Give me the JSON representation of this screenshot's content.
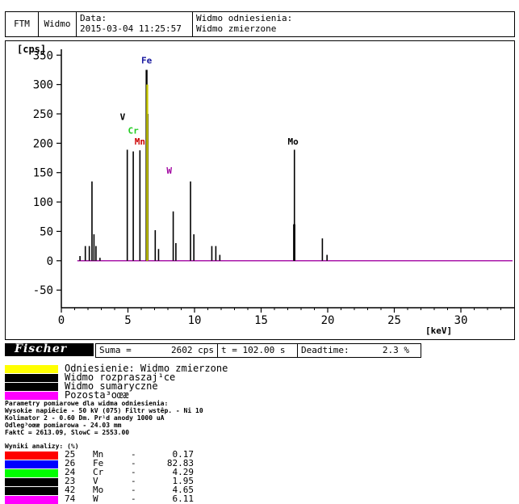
{
  "header": {
    "cell1": "FTM",
    "cell2": "Widmo",
    "date_label": "Data:",
    "date_value": "2015-03-04 11:25:57",
    "ref_label": "Widmo odniesienia:",
    "ref_value": "Widmo zmierzone"
  },
  "chart_data": {
    "type": "line",
    "ylabel": "[cps]",
    "xlabel": "[keV]",
    "xlim": [
      0,
      34
    ],
    "ylim": [
      -80,
      360
    ],
    "xticks": [
      0,
      5,
      10,
      15,
      20,
      25,
      30
    ],
    "yticks": [
      -50,
      0,
      50,
      100,
      150,
      200,
      250,
      300,
      350
    ],
    "peaks": [
      {
        "x": 1.4,
        "y": 8
      },
      {
        "x": 1.8,
        "y": 25
      },
      {
        "x": 2.1,
        "y": 25
      },
      {
        "x": 2.3,
        "y": 135
      },
      {
        "x": 2.45,
        "y": 45
      },
      {
        "x": 2.6,
        "y": 25
      },
      {
        "x": 2.9,
        "y": 5
      },
      {
        "x": 4.95,
        "y": 189
      },
      {
        "x": 5.4,
        "y": 186
      },
      {
        "x": 5.9,
        "y": 188
      },
      {
        "x": 6.4,
        "y": 325
      },
      {
        "x": 6.5,
        "y": 250
      },
      {
        "x": 7.05,
        "y": 52
      },
      {
        "x": 7.3,
        "y": 20
      },
      {
        "x": 8.4,
        "y": 84
      },
      {
        "x": 8.6,
        "y": 30
      },
      {
        "x": 9.7,
        "y": 135
      },
      {
        "x": 9.95,
        "y": 45
      },
      {
        "x": 11.3,
        "y": 25
      },
      {
        "x": 11.6,
        "y": 25
      },
      {
        "x": 11.9,
        "y": 10
      },
      {
        "x": 17.45,
        "y": 62
      },
      {
        "x": 17.5,
        "y": 189
      },
      {
        "x": 19.6,
        "y": 38
      },
      {
        "x": 19.95,
        "y": 10
      }
    ],
    "element_labels": [
      {
        "text": "Fe",
        "x": 6.4,
        "y": 336,
        "color": "#1a1aa0"
      },
      {
        "text": "V",
        "x": 4.6,
        "y": 240,
        "color": "#000000"
      },
      {
        "text": "Cr",
        "x": 5.4,
        "y": 216,
        "color": "#22cc22"
      },
      {
        "text": "Mn",
        "x": 5.9,
        "y": 198,
        "color": "#cc0000"
      },
      {
        "text": "W",
        "x": 8.1,
        "y": 148,
        "color": "#a000a0"
      },
      {
        "text": "Mo",
        "x": 17.4,
        "y": 198,
        "color": "#000000"
      }
    ]
  },
  "status": {
    "logo": "Fischer",
    "suma_label": "Suma =",
    "suma_value": "2602 cps",
    "time": "t = 102.00 s",
    "deadtime_label": "Deadtime:",
    "deadtime_value": "2.3 %"
  },
  "legend": [
    {
      "label": "Odniesienie: Widmo zmierzone",
      "color": "#ffff00"
    },
    {
      "label": "Widmo rozpraszaj¹ce",
      "color": "#000000"
    },
    {
      "label": "Widmo sumaryczne",
      "color": "#000000"
    },
    {
      "label": "Pozosta³oœæ",
      "color": "#ff00ff"
    }
  ],
  "params": [
    "Parametry pomiarowe dla widma odniesienia:",
    "Wysokie napiêcie - 50 kV (075)  Filtr wstêp. - Ni 10",
    "Kolimator 2 - 0.60 Dm.   Pr¹d anody 1000 uA",
    "Odleg³oœæ pomiarowa - 24.03 mm",
    "FaktC =   2613.09, SlowC =   2553.00"
  ],
  "results_title": "Wyniki analizy: (%)",
  "results": [
    {
      "z": "25",
      "el": "Mn",
      "dash": "-",
      "val": "0.17",
      "color": "#ff0000"
    },
    {
      "z": "26",
      "el": "Fe",
      "dash": "-",
      "val": "82.83",
      "color": "#0000ff"
    },
    {
      "z": "24",
      "el": "Cr",
      "dash": "-",
      "val": "4.29",
      "color": "#00ff00"
    },
    {
      "z": "23",
      "el": "V",
      "dash": "-",
      "val": "1.95",
      "color": "#000000"
    },
    {
      "z": "42",
      "el": "Mo",
      "dash": "-",
      "val": "4.65",
      "color": "#000000"
    },
    {
      "z": "74",
      "el": "W",
      "dash": "-",
      "val": "6.11",
      "color": "#ff00ff"
    }
  ]
}
